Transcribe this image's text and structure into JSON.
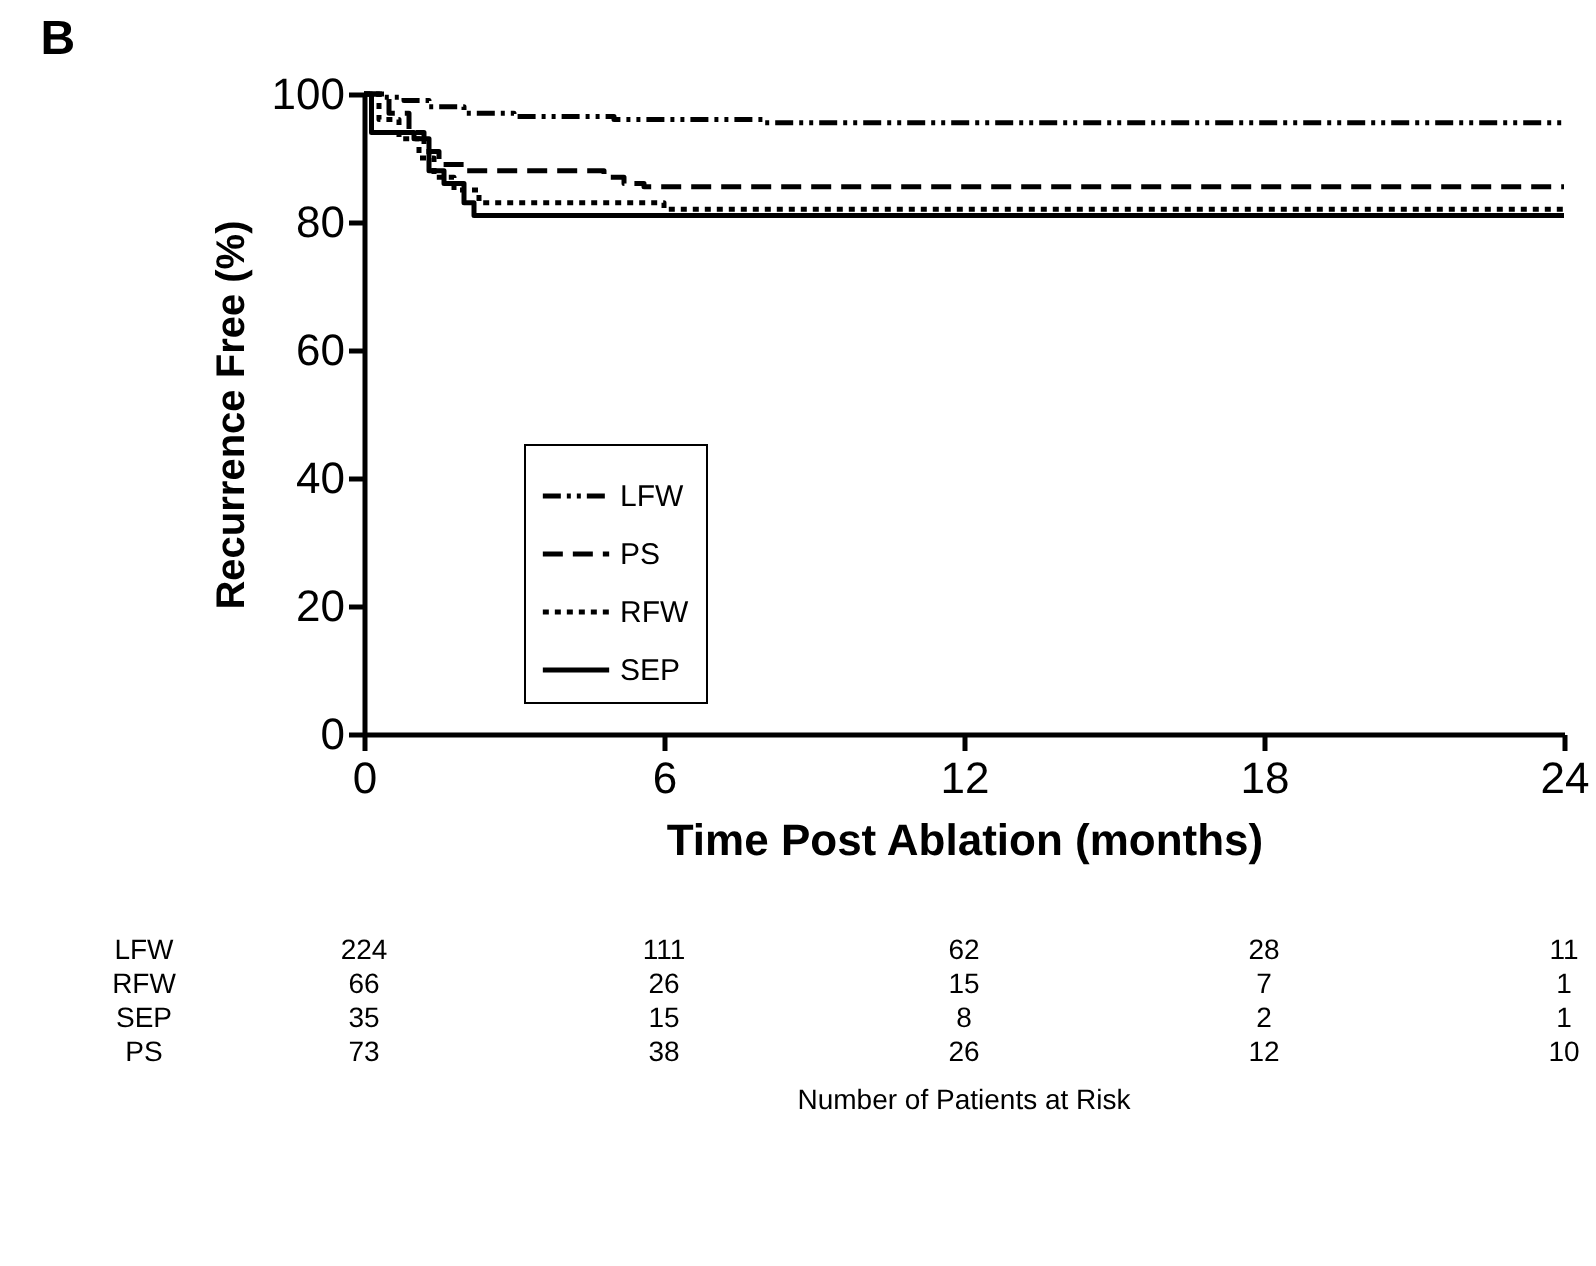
{
  "chart_data": {
    "type": "step",
    "title": "B",
    "xlabel": "Time Post Ablation (months)",
    "ylabel": "Recurrence Free (%)",
    "xlim": [
      0,
      24
    ],
    "xticks": [
      0,
      6,
      12,
      18,
      24
    ],
    "ylim": [
      0,
      100
    ],
    "yticks": [
      0,
      20,
      40,
      60,
      80,
      100
    ],
    "grid": false,
    "legend": "left",
    "marker": "none",
    "series": [
      {
        "name": "LFW",
        "color": "#000000",
        "line_style": "dashdot",
        "x": [
          0,
          0.4,
          0.8,
          1.3,
          2,
          3,
          5,
          8,
          24
        ],
        "values": [
          100,
          99.5,
          99,
          98,
          97,
          96.5,
          96,
          95.5,
          95.5
        ]
      },
      {
        "name": "PS",
        "color": "#000000",
        "line_style": "dashed",
        "x": [
          0,
          0.5,
          0.9,
          1.2,
          1.5,
          2,
          4.8,
          5.2,
          5.6,
          6,
          24
        ],
        "values": [
          100,
          97,
          94,
          91,
          89,
          88,
          87,
          86,
          85.5,
          85.5,
          85.5
        ]
      },
      {
        "name": "RFW",
        "color": "#000000",
        "line_style": "dotted",
        "x": [
          0,
          0.3,
          0.7,
          1.1,
          1.4,
          1.8,
          2.3,
          6,
          24
        ],
        "values": [
          100,
          96,
          93,
          90,
          87,
          85,
          83,
          82,
          82
        ]
      },
      {
        "name": "SEP",
        "color": "#000000",
        "line_style": "solid",
        "x": [
          0,
          0.15,
          1,
          1.3,
          1.6,
          2,
          2.2,
          24
        ],
        "values": [
          100,
          94,
          93,
          88,
          86,
          83,
          81,
          81
        ]
      }
    ],
    "annotations": [
      "LFW 224 111 62 28 11",
      "RFW 66 26 15 7 1",
      "SEP 35 15 8 2 1",
      "PS 73 38 26 12 10",
      "Number of Patients at Risk"
    ]
  }
}
